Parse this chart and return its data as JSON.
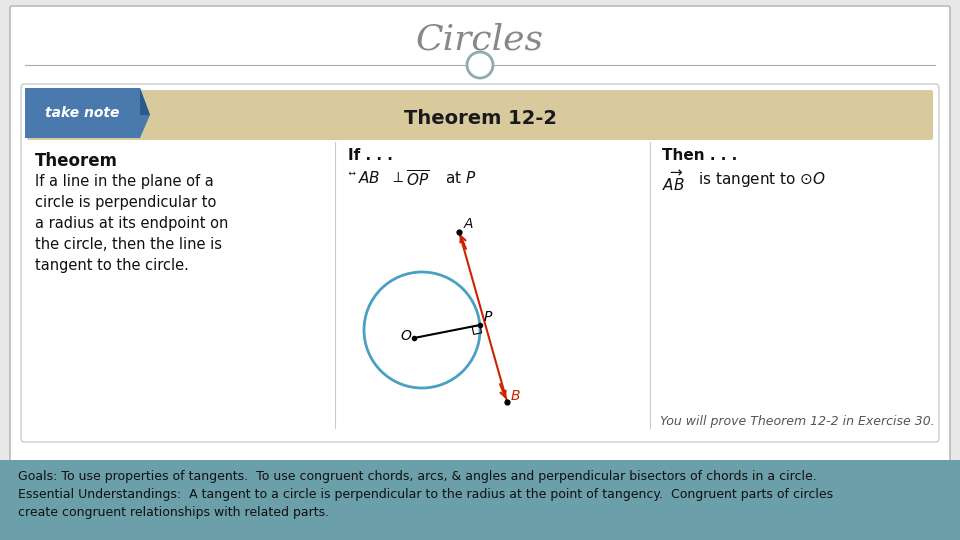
{
  "title": "Circles",
  "title_color": "#888888",
  "title_fontsize": 26,
  "bg_color": "#e8e8e8",
  "header_bar_color": "#d9ca9e",
  "theorem_title": "Theorem 12-2",
  "footer_text_line1": "Goals: To use properties of tangents.  To use congruent chords, arcs, & angles and perpendicular bisectors of chords in a circle.",
  "footer_text_line2": "Essential Understandings:  A tangent to a circle is perpendicular to the radius at the point of tangency.  Congruent parts of circles",
  "footer_text_line3": "create congruent relationships with related parts.",
  "footer_bg": "#6b9faa",
  "footer_text_color": "#111111",
  "card_bg": "#ffffff",
  "circle_color": "#4aa0c0",
  "tangent_color": "#cc2200",
  "note_bg": "#4a7aad",
  "proof_italic": "You will prove Theorem 12-2 in Exercise 30.",
  "separator_color": "#aaaaaa",
  "slide_bg": "#ffffff"
}
